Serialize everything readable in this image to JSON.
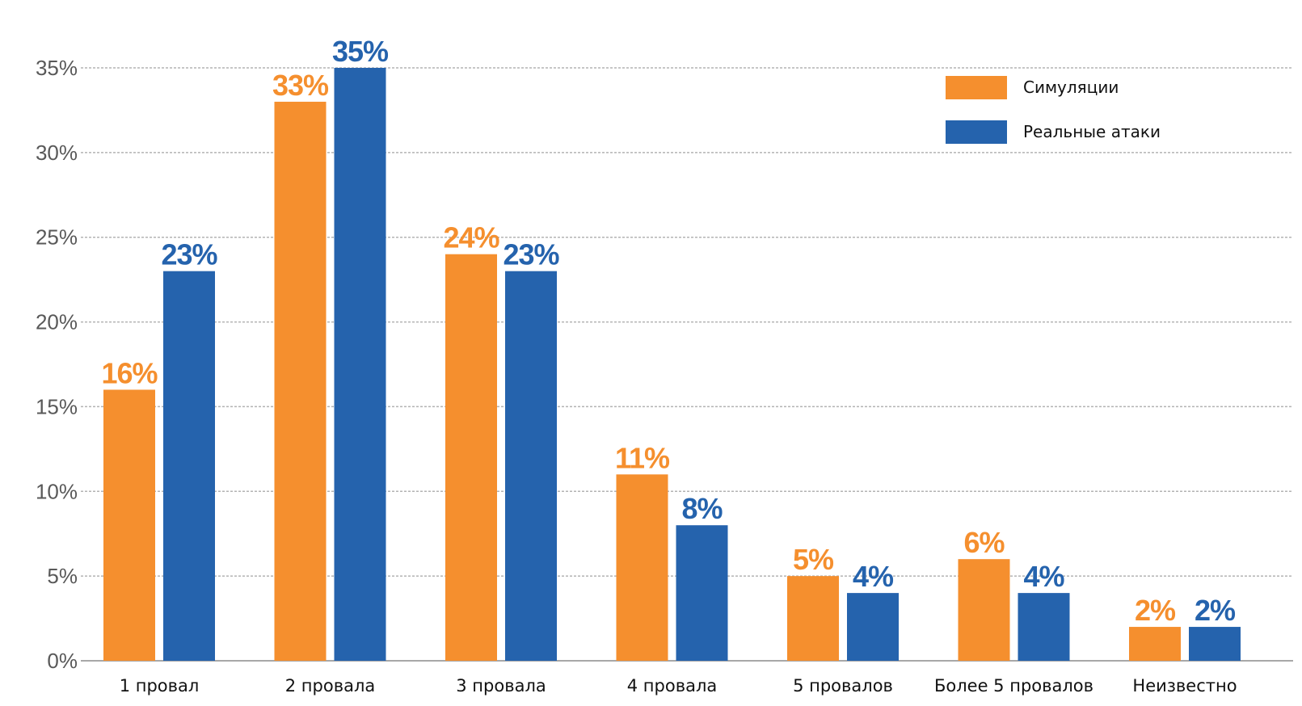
{
  "chart_data": {
    "type": "bar",
    "title": "",
    "xlabel": "",
    "ylabel": "",
    "categories": [
      "1 провал",
      "2 провала",
      "3 провала",
      "4 провала",
      "5 провалов",
      "Более 5 провалов",
      "Неизвестно"
    ],
    "series": [
      {
        "name": "Симуляции",
        "color": "#f58f2e",
        "values": [
          16,
          33,
          24,
          11,
          5,
          6,
          2
        ],
        "labels": [
          "16%",
          "33%",
          "24%",
          "11%",
          "5%",
          "6%",
          "2%"
        ]
      },
      {
        "name": "Реальные атаки",
        "color": "#2563ad",
        "values": [
          23,
          35,
          23,
          8,
          4,
          4,
          2
        ],
        "labels": [
          "23%",
          "35%",
          "23%",
          "8%",
          "4%",
          "4%",
          "2%"
        ]
      }
    ],
    "ylim": [
      0,
      35
    ],
    "yticks": [
      0,
      5,
      10,
      15,
      20,
      25,
      30,
      35
    ],
    "ytick_labels": [
      "0%",
      "5%",
      "10%",
      "15%",
      "20%",
      "25%",
      "30%",
      "35%"
    ],
    "grid": true,
    "legend_position": "top-right"
  }
}
